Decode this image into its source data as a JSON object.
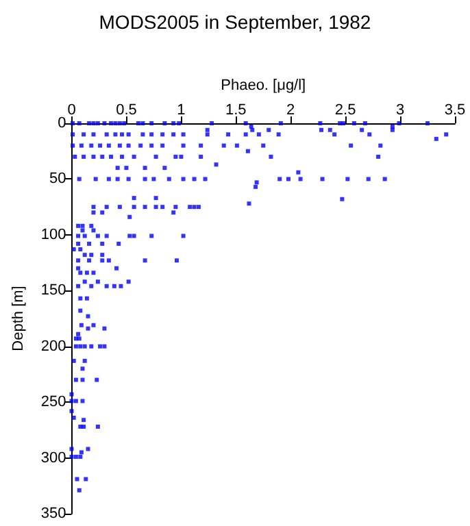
{
  "chart_data": {
    "type": "scatter",
    "title": "MODS2005 in September, 1982",
    "xlabel": "Phaeo. [μg/l]",
    "ylabel": "Depth [m]",
    "xlim": [
      0,
      3.5
    ],
    "xticks": [
      0,
      0.5,
      1,
      1.5,
      2,
      2.5,
      3,
      3.5
    ],
    "ylim": [
      350,
      0
    ],
    "yticks": [
      0,
      50,
      100,
      150,
      200,
      250,
      300,
      350
    ],
    "grid": false,
    "marker": "square",
    "series": [
      {
        "color": "#0000ff",
        "x": [
          0.01,
          0.07,
          0.16,
          0.2,
          0.24,
          0.3,
          0.36,
          0.4,
          0.44,
          0.48,
          0.61,
          0.65,
          0.73,
          0.85,
          0.93,
          0.98,
          1.28,
          1.59,
          1.91,
          2.27,
          2.45,
          2.48,
          2.58,
          2.68,
          2.99,
          3.25,
          1.64,
          2.93,
          1.24,
          1.65,
          1.8,
          2.28,
          2.36,
          2.65,
          2.93,
          0.01,
          0.11,
          0.2,
          0.32,
          0.4,
          0.46,
          0.52,
          0.65,
          0.73,
          0.83,
          0.93,
          1.02,
          1.24,
          1.43,
          1.59,
          1.71,
          1.89,
          2.4,
          2.72,
          3.42,
          3.33,
          0.01,
          0.09,
          0.18,
          0.26,
          0.34,
          0.44,
          0.52,
          0.63,
          0.73,
          0.83,
          1.02,
          1.18,
          1.39,
          1.51,
          1.75,
          2.55,
          2.82,
          1.61,
          0.03,
          0.11,
          0.2,
          0.28,
          0.36,
          0.46,
          0.57,
          0.77,
          0.95,
          1.0,
          1.18,
          1.82,
          2.8,
          1.32,
          0.42,
          0.5,
          0.67,
          0.85,
          2.07,
          0.07,
          0.22,
          0.34,
          0.42,
          0.52,
          0.67,
          0.75,
          0.89,
          1.02,
          1.12,
          1.22,
          1.9,
          1.98,
          2.09,
          2.29,
          2.52,
          2.71,
          2.86,
          1.69,
          1.68,
          0.57,
          0.77,
          2.47,
          1.62,
          0.2,
          0.32,
          0.44,
          0.57,
          0.67,
          0.77,
          0.83,
          0.95,
          1.08,
          1.12,
          1.16,
          0.2,
          0.28,
          0.93,
          0.53,
          0.06,
          0.1,
          0.18,
          0.1,
          0.2,
          0.06,
          0.12,
          0.24,
          0.32,
          0.53,
          0.57,
          0.73,
          1.02,
          0.06,
          0.16,
          0.28,
          0.43,
          0.02,
          0.08,
          0.12,
          0.18,
          0.28,
          0.06,
          0.16,
          0.28,
          0.34,
          0.67,
          0.96,
          0.06,
          0.41,
          0.08,
          0.14,
          0.2,
          0.12,
          0.24,
          0.52,
          0.06,
          0.18,
          0.32,
          0.39,
          0.45,
          0.08,
          0.14,
          0.08,
          0.15,
          0.09,
          0.2,
          0.15,
          0.3,
          0.06,
          0.04,
          0.07,
          0.04,
          0.08,
          0.12,
          0.18,
          0.26,
          0.3,
          0.02,
          0.12,
          0.1,
          0.04,
          0.1,
          0.23,
          0,
          0,
          0.04,
          0.1,
          0,
          0.02,
          0.11,
          0.08,
          0.11,
          0.24,
          0,
          0.15,
          0.09,
          0,
          0.04,
          0.08,
          0.05,
          0.13,
          0.07
        ],
        "values": [
          0,
          0,
          0,
          0,
          0,
          0,
          0,
          0,
          0,
          0,
          0,
          0,
          0,
          0,
          0,
          0,
          0,
          0,
          0,
          0,
          0,
          0,
          0,
          0,
          0,
          0,
          3,
          3,
          6,
          6,
          6,
          6,
          6,
          6,
          6,
          10,
          10,
          10,
          10,
          10,
          10,
          10,
          10,
          10,
          10,
          10,
          10,
          10,
          10,
          10,
          10,
          10,
          10,
          10,
          10,
          14,
          20,
          20,
          20,
          20,
          20,
          20,
          20,
          20,
          20,
          20,
          20,
          20,
          20,
          20,
          20,
          20,
          20,
          25,
          30,
          30,
          30,
          30,
          30,
          30,
          30,
          30,
          30,
          30,
          30,
          30,
          30,
          37,
          40,
          40,
          40,
          40,
          44,
          50,
          50,
          50,
          50,
          50,
          50,
          50,
          50,
          50,
          50,
          50,
          50,
          50,
          50,
          50,
          50,
          50,
          50,
          53,
          57,
          67,
          67,
          68,
          72,
          75,
          75,
          75,
          75,
          75,
          75,
          75,
          75,
          75,
          75,
          75,
          80,
          80,
          80,
          84,
          92,
          92,
          92,
          96,
          96,
          101,
          101,
          101,
          101,
          101,
          101,
          101,
          101,
          108,
          108,
          108,
          108,
          113,
          113,
          118,
          118,
          118,
          123,
          123,
          123,
          123,
          123,
          123,
          130,
          130,
          134,
          134,
          134,
          142,
          142,
          142,
          146,
          146,
          146,
          146,
          146,
          157,
          157,
          168,
          173,
          181,
          181,
          184,
          184,
          189,
          193,
          193,
          200,
          200,
          200,
          200,
          200,
          200,
          213,
          213,
          220,
          230,
          230,
          230,
          243,
          249,
          249,
          249,
          258,
          264,
          266,
          272,
          272,
          272,
          292,
          292,
          295,
          299,
          299,
          299,
          319,
          319,
          329
        ]
      }
    ]
  }
}
